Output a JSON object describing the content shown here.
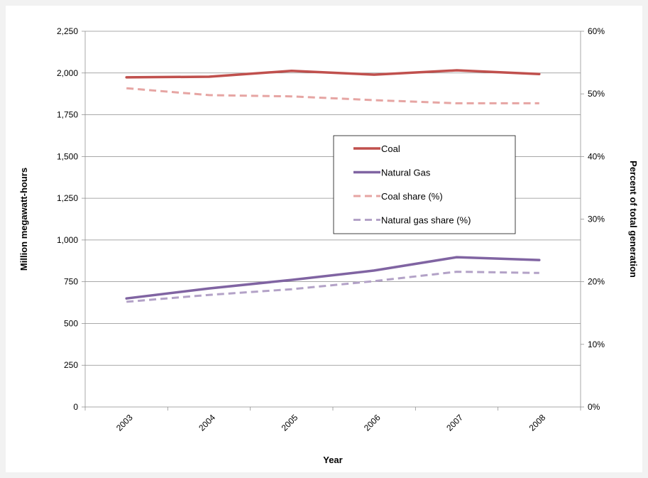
{
  "chart_data": {
    "type": "line",
    "x": [
      "2003",
      "2004",
      "2005",
      "2006",
      "2007",
      "2008"
    ],
    "xlabel": "Year",
    "ylabel": "Million megawatt-hours",
    "y2label": "Percent of total generation",
    "ylim": [
      0,
      2250
    ],
    "yticks": [
      0,
      250,
      500,
      750,
      1000,
      1250,
      1500,
      1750,
      2000,
      2250
    ],
    "yticklabels": [
      "0",
      "250",
      "500",
      "750",
      "1,000",
      "1,250",
      "1,500",
      "1,750",
      "2,000",
      "2,250"
    ],
    "y2lim": [
      0,
      60
    ],
    "y2ticks": [
      0,
      10,
      20,
      30,
      40,
      50,
      60
    ],
    "y2ticklabels": [
      "0%",
      "10%",
      "20%",
      "30%",
      "40%",
      "50%",
      "60%"
    ],
    "grid": true,
    "legend_position": "center-right",
    "series": [
      {
        "name": "Coal",
        "axis": "left",
        "style": "solid",
        "color": "#c0504d",
        "values": [
          1974,
          1978,
          2013,
          1990,
          2016,
          1994
        ]
      },
      {
        "name": "Natural Gas",
        "axis": "left",
        "style": "solid",
        "color": "#8064a2",
        "values": [
          650,
          710,
          761,
          817,
          897,
          880
        ]
      },
      {
        "name": "Coal share (%)",
        "axis": "right",
        "style": "dashed",
        "color": "#e6a5a3",
        "values": [
          50.9,
          49.8,
          49.6,
          49.0,
          48.5,
          48.5
        ]
      },
      {
        "name": "Natural gas share (%)",
        "axis": "right",
        "style": "dashed",
        "color": "#b3a2c7",
        "values": [
          16.8,
          17.9,
          18.8,
          20.1,
          21.6,
          21.4
        ]
      }
    ]
  }
}
